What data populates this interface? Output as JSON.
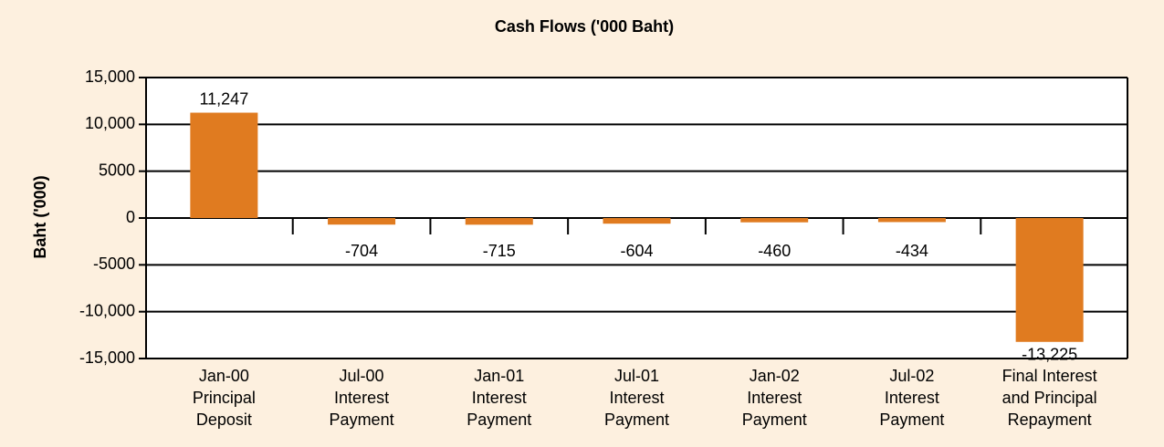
{
  "chart_data": {
    "type": "bar",
    "title": "Cash Flows ('000 Baht)",
    "y_label": "Baht ('000)",
    "categories": [
      [
        "Jan-00",
        "Principal",
        "Deposit"
      ],
      [
        "Jul-00",
        "Interest",
        "Payment"
      ],
      [
        "Jan-01",
        "Interest",
        "Payment"
      ],
      [
        "Jul-01",
        "Interest",
        "Payment"
      ],
      [
        "Jan-02",
        "Interest",
        "Payment"
      ],
      [
        "Jul-02",
        "Interest",
        "Payment"
      ],
      [
        "Final Interest",
        "and Principal",
        "Repayment"
      ]
    ],
    "values": [
      11247,
      -704,
      -715,
      -604,
      -460,
      -434,
      -13225
    ],
    "value_labels": [
      "11,247",
      "-704",
      "-715",
      "-604",
      "-460",
      "-434",
      "-13,225"
    ],
    "color": "#e07b20",
    "ylim": [
      -15000,
      15000
    ],
    "yticks": [
      {
        "value": -15000,
        "label": "-15,000"
      },
      {
        "value": -10000,
        "label": "-10,000"
      },
      -5000,
      0,
      5000,
      {
        "value": 10000,
        "label": "10,000"
      },
      {
        "value": 15000,
        "label": "15,000"
      }
    ],
    "grid": true
  }
}
